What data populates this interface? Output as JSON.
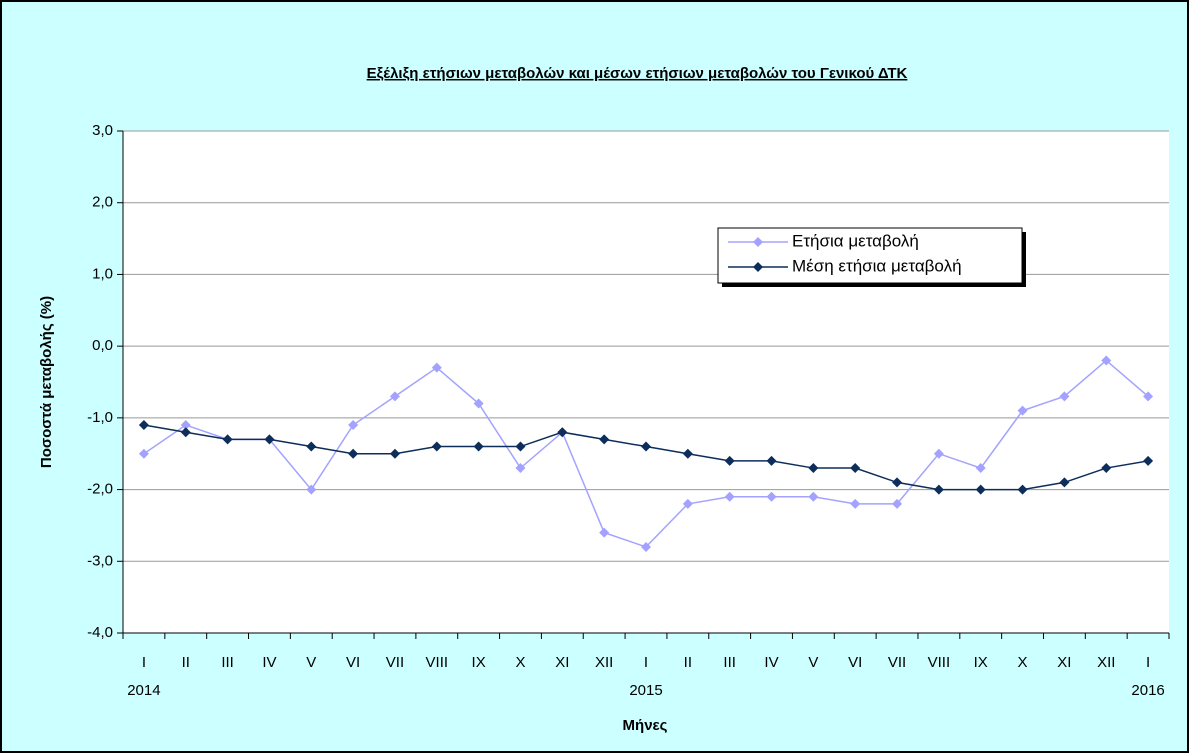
{
  "chart_data": {
    "type": "line",
    "title": "Εξέλιξη ετήσιων μεταβολών και μέσων ετήσιων μεταβολών του Γενικού ΔΤΚ",
    "x_label": "Μήνες",
    "y_label": "Ποσοστά μεταβολής (%)",
    "categories": [
      "I",
      "II",
      "III",
      "IV",
      "V",
      "VI",
      "VII",
      "VIII",
      "IX",
      "X",
      "XI",
      "XII",
      "I",
      "II",
      "III",
      "IV",
      "V",
      "VI",
      "VII",
      "VIII",
      "IX",
      "X",
      "XI",
      "XII",
      "I"
    ],
    "years": [
      "2014",
      null,
      null,
      null,
      null,
      null,
      null,
      null,
      null,
      null,
      null,
      null,
      "2015",
      null,
      null,
      null,
      null,
      null,
      null,
      null,
      null,
      null,
      null,
      null,
      "2016"
    ],
    "series": [
      {
        "name": "Ετήσια μεταβολή",
        "color": "#a3a3ff",
        "values": [
          -1.5,
          -1.1,
          -1.3,
          -1.3,
          -2.0,
          -1.1,
          -0.7,
          -0.3,
          -0.8,
          -1.7,
          -1.2,
          -2.6,
          -2.8,
          -2.2,
          -2.1,
          -2.1,
          -2.1,
          -2.2,
          -2.2,
          -1.5,
          -1.7,
          -0.9,
          -0.7,
          -0.2,
          -0.7
        ]
      },
      {
        "name": "Μέση ετήσια μεταβολή",
        "color": "#0d2d5a",
        "values": [
          -1.1,
          -1.2,
          -1.3,
          -1.3,
          -1.4,
          -1.5,
          -1.5,
          -1.4,
          -1.4,
          -1.4,
          -1.2,
          -1.3,
          -1.4,
          -1.5,
          -1.6,
          -1.6,
          -1.7,
          -1.7,
          -1.9,
          -2.0,
          -2.0,
          -2.0,
          -1.9,
          -1.7,
          -1.6
        ]
      }
    ],
    "ylim": [
      -4,
      3
    ],
    "yticks": [
      {
        "value": -4,
        "label": "-4,0"
      },
      {
        "value": -3,
        "label": "-3,0"
      },
      {
        "value": -2,
        "label": "-2,0"
      },
      {
        "value": -1,
        "label": "-1,0"
      },
      {
        "value": 0,
        "label": "0,0"
      },
      {
        "value": 1,
        "label": "1,0"
      },
      {
        "value": 2,
        "label": "2,0"
      },
      {
        "value": 3,
        "label": "3,0"
      }
    ],
    "grid": true,
    "legend": "upper right"
  }
}
